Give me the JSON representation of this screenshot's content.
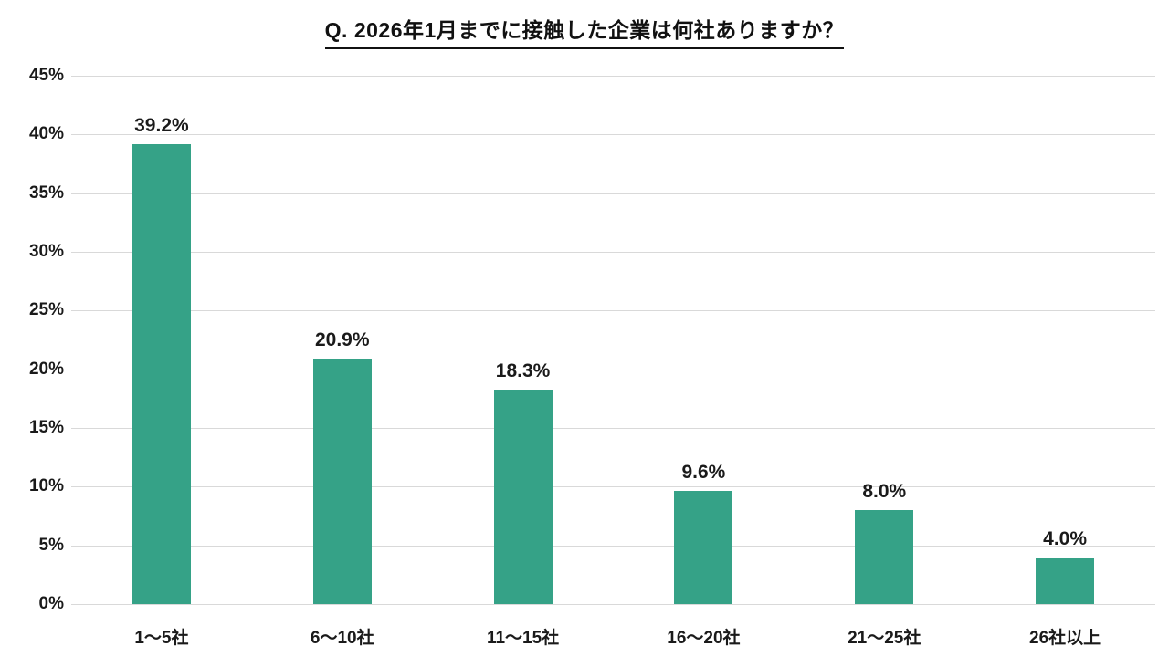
{
  "chart_data": {
    "type": "bar",
    "title": "Q. 2026年1月までに接触した企業は何社ありますか？",
    "categories": [
      "1～5社",
      "6～10社",
      "11～15社",
      "16～20社",
      "21～25社",
      "26社以上"
    ],
    "values": [
      39.2,
      20.9,
      18.3,
      9.6,
      8.0,
      4.0
    ],
    "value_labels": [
      "39.2%",
      "20.9%",
      "18.3%",
      "9.6%",
      "8.0%",
      "4.0%"
    ],
    "xlabel": "",
    "ylabel": "",
    "ylim": [
      0,
      45
    ],
    "ytick_step": 5,
    "ytick_labels": [
      "0%",
      "5%",
      "10%",
      "15%",
      "20%",
      "25%",
      "30%",
      "35%",
      "40%",
      "45%"
    ],
    "grid": true,
    "legend": "none",
    "colors": {
      "bar": "#35a287",
      "gridline": "#d9d9d9",
      "text": "#1a1a1a",
      "background": "#ffffff"
    }
  }
}
